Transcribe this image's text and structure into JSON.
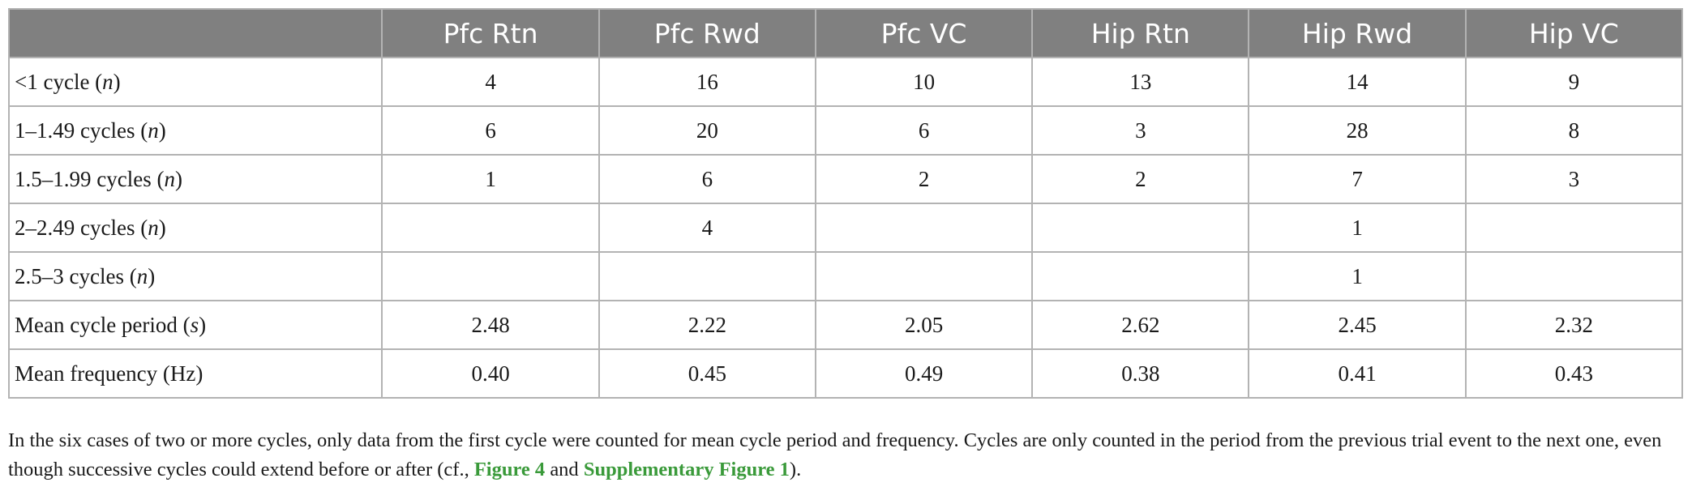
{
  "table": {
    "columns": [
      "",
      "Pfc Rtn",
      "Pfc Rwd",
      "Pfc VC",
      "Hip Rtn",
      "Hip Rwd",
      "Hip VC"
    ],
    "rows": [
      {
        "label_main": "<1 cycle (",
        "label_var": "n",
        "label_end": ")",
        "values": [
          "4",
          "16",
          "10",
          "13",
          "14",
          "9"
        ]
      },
      {
        "label_main": "1–1.49 cycles (",
        "label_var": "n",
        "label_end": ")",
        "values": [
          "6",
          "20",
          "6",
          "3",
          "28",
          "8"
        ]
      },
      {
        "label_main": "1.5–1.99 cycles (",
        "label_var": "n",
        "label_end": ")",
        "values": [
          "1",
          "6",
          "2",
          "2",
          "7",
          "3"
        ]
      },
      {
        "label_main": "2–2.49 cycles (",
        "label_var": "n",
        "label_end": ")",
        "values": [
          "",
          "4",
          "",
          "",
          "1",
          ""
        ]
      },
      {
        "label_main": "2.5–3 cycles (",
        "label_var": "n",
        "label_end": ")",
        "values": [
          "",
          "",
          "",
          "",
          "1",
          ""
        ]
      },
      {
        "label_main": "Mean cycle period (",
        "label_var": "s",
        "label_end": ")",
        "values": [
          "2.48",
          "2.22",
          "2.05",
          "2.62",
          "2.45",
          "2.32"
        ]
      },
      {
        "label_main": "Mean frequency (Hz)",
        "label_var": "",
        "label_end": "",
        "values": [
          "0.40",
          "0.45",
          "0.49",
          "0.38",
          "0.41",
          "0.43"
        ]
      }
    ]
  },
  "caption": {
    "text1": "In the six cases of two or more cycles, only data from the first cycle were counted for mean cycle period and frequency. Cycles are only counted in the period from the previous trial event to the next one, even though successive cycles could extend before or after (cf., ",
    "ref1": "Figure 4",
    "text2": " and ",
    "ref2": "Supplementary Figure 1",
    "text3": ")."
  },
  "colors": {
    "header_bg": "#808080",
    "border": "#b3b3b3",
    "link": "#3a9a3a"
  }
}
